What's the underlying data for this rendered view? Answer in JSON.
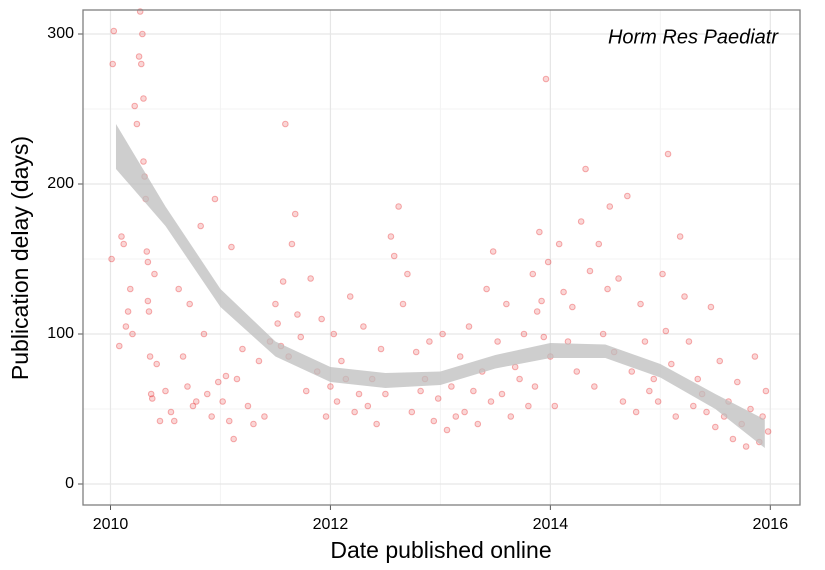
{
  "chart_data": {
    "type": "scatter",
    "annotation": "Horm Res Paediatr",
    "xlabel": "Date published online",
    "ylabel": "Publication delay (days)",
    "xlim": [
      2009.75,
      2016.27
    ],
    "xticks": [
      2010,
      2012,
      2014,
      2016
    ],
    "ylim": [
      -14,
      316
    ],
    "yticks": [
      0,
      100,
      200,
      300
    ],
    "grid": true,
    "series": [
      {
        "color": "#e41a1c",
        "x": [
          2010.01,
          2010.02,
          2010.03,
          2010.08,
          2010.1,
          2010.12,
          2010.14,
          2010.16,
          2010.18,
          2010.2,
          2010.22,
          2010.24,
          2010.26,
          2010.27,
          2010.28,
          2010.29,
          2010.3,
          2010.3,
          2010.31,
          2010.32,
          2010.33,
          2010.34,
          2010.34,
          2010.35,
          2010.36,
          2010.37,
          2010.38,
          2010.4,
          2010.42,
          2010.45,
          2010.5,
          2010.55,
          2010.58,
          2010.62,
          2010.66,
          2010.7,
          2010.72,
          2010.75,
          2010.78,
          2010.82,
          2010.85,
          2010.88,
          2010.92,
          2010.95,
          2010.98,
          2011.02,
          2011.05,
          2011.08,
          2011.1,
          2011.12,
          2011.15,
          2011.2,
          2011.25,
          2011.3,
          2011.35,
          2011.4,
          2011.45,
          2011.5,
          2011.52,
          2011.55,
          2011.57,
          2011.59,
          2011.62,
          2011.65,
          2011.68,
          2011.7,
          2011.73,
          2011.78,
          2011.82,
          2011.88,
          2011.92,
          2011.96,
          2012.0,
          2012.03,
          2012.06,
          2012.1,
          2012.14,
          2012.18,
          2012.22,
          2012.26,
          2012.3,
          2012.34,
          2012.38,
          2012.42,
          2012.46,
          2012.5,
          2012.55,
          2012.58,
          2012.62,
          2012.66,
          2012.7,
          2012.74,
          2012.78,
          2012.82,
          2012.86,
          2012.9,
          2012.94,
          2012.98,
          2013.02,
          2013.06,
          2013.1,
          2013.14,
          2013.18,
          2013.22,
          2013.26,
          2013.3,
          2013.34,
          2013.38,
          2013.42,
          2013.46,
          2013.48,
          2013.52,
          2013.56,
          2013.6,
          2013.64,
          2013.68,
          2013.72,
          2013.76,
          2013.8,
          2013.84,
          2013.86,
          2013.88,
          2013.9,
          2013.92,
          2013.94,
          2013.96,
          2013.98,
          2014.0,
          2014.04,
          2014.08,
          2014.12,
          2014.16,
          2014.2,
          2014.24,
          2014.28,
          2014.32,
          2014.36,
          2014.4,
          2014.44,
          2014.48,
          2014.52,
          2014.54,
          2014.58,
          2014.62,
          2014.66,
          2014.7,
          2014.74,
          2014.78,
          2014.82,
          2014.86,
          2014.9,
          2014.94,
          2014.98,
          2015.02,
          2015.05,
          2015.07,
          2015.1,
          2015.14,
          2015.18,
          2015.22,
          2015.26,
          2015.3,
          2015.34,
          2015.38,
          2015.42,
          2015.46,
          2015.5,
          2015.54,
          2015.58,
          2015.62,
          2015.66,
          2015.7,
          2015.74,
          2015.78,
          2015.82,
          2015.86,
          2015.9,
          2015.93,
          2015.96,
          2015.98
        ],
        "values": [
          150,
          280,
          302,
          92,
          165,
          160,
          105,
          115,
          130,
          100,
          252,
          240,
          285,
          315,
          280,
          300,
          257,
          215,
          205,
          190,
          155,
          148,
          122,
          115,
          85,
          60,
          57,
          140,
          80,
          42,
          62,
          48,
          42,
          130,
          85,
          65,
          120,
          52,
          55,
          172,
          100,
          60,
          45,
          190,
          68,
          55,
          72,
          42,
          158,
          30,
          70,
          90,
          52,
          40,
          82,
          45,
          95,
          120,
          107,
          92,
          135,
          240,
          85,
          160,
          180,
          113,
          98,
          62,
          137,
          75,
          110,
          45,
          65,
          100,
          55,
          82,
          70,
          125,
          48,
          60,
          105,
          52,
          70,
          40,
          90,
          60,
          165,
          152,
          185,
          120,
          140,
          48,
          88,
          62,
          70,
          95,
          42,
          57,
          100,
          36,
          65,
          45,
          85,
          48,
          105,
          62,
          40,
          75,
          130,
          55,
          155,
          95,
          60,
          120,
          45,
          78,
          70,
          100,
          52,
          140,
          65,
          115,
          168,
          122,
          98,
          270,
          148,
          85,
          52,
          160,
          128,
          95,
          118,
          75,
          175,
          210,
          142,
          65,
          160,
          100,
          130,
          185,
          88,
          137,
          55,
          192,
          75,
          48,
          120,
          95,
          62,
          70,
          55,
          140,
          102,
          220,
          80,
          45,
          165,
          125,
          95,
          52,
          70,
          60,
          48,
          118,
          38,
          82,
          45,
          55,
          30,
          68,
          40,
          25,
          50,
          85,
          28,
          45,
          62,
          35
        ]
      }
    ],
    "smooth": {
      "color": "#bdbdbd",
      "x": [
        2010.05,
        2010.5,
        2011,
        2011.5,
        2012,
        2012.5,
        2013,
        2013.5,
        2014,
        2014.5,
        2015,
        2015.5,
        2015.95
      ],
      "upper": [
        240,
        185,
        130,
        95,
        78,
        74,
        75,
        86,
        94,
        93,
        80,
        60,
        43
      ],
      "lower": [
        210,
        172,
        118,
        85,
        68,
        64,
        66,
        77,
        84,
        84,
        71,
        50,
        24
      ]
    }
  }
}
